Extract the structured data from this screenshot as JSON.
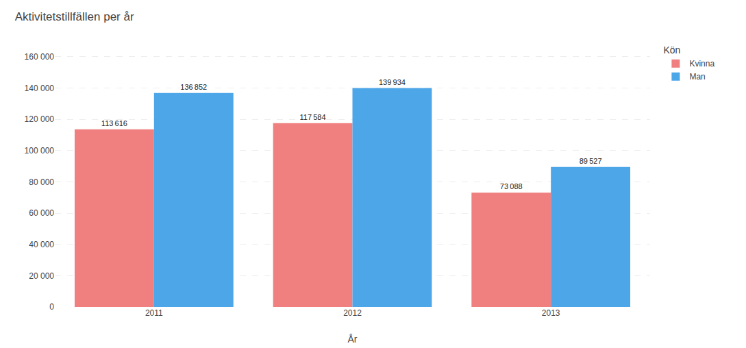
{
  "chart_data": {
    "type": "bar",
    "title": "Aktivitetstillfällen per år",
    "xlabel": "År",
    "legend_title": "Kön",
    "categories": [
      "2011",
      "2012",
      "2013"
    ],
    "series": [
      {
        "name": "Kvinna",
        "color": "#F08080",
        "values": [
          113616,
          117584,
          73088
        ],
        "value_labels": [
          "113 616",
          "117 584",
          "73 088"
        ]
      },
      {
        "name": "Man",
        "color": "#4DA6E8",
        "values": [
          136852,
          139934,
          89527
        ],
        "value_labels": [
          "136 852",
          "139 934",
          "89 527"
        ]
      }
    ],
    "ylim": [
      0,
      170000
    ],
    "yticks": [
      0,
      {
        "value": 20000,
        "label": "20 000"
      },
      {
        "value": 40000,
        "label": "40 000"
      },
      {
        "value": 60000,
        "label": "60 000"
      },
      {
        "value": 80000,
        "label": "80 000"
      },
      {
        "value": 100000,
        "label": "100 000"
      },
      {
        "value": 120000,
        "label": "120 000"
      },
      {
        "value": 140000,
        "label": "140 000"
      },
      {
        "value": 160000,
        "label": "160 000"
      }
    ],
    "grid": true,
    "legend": "upper right",
    "data_labels": true
  }
}
